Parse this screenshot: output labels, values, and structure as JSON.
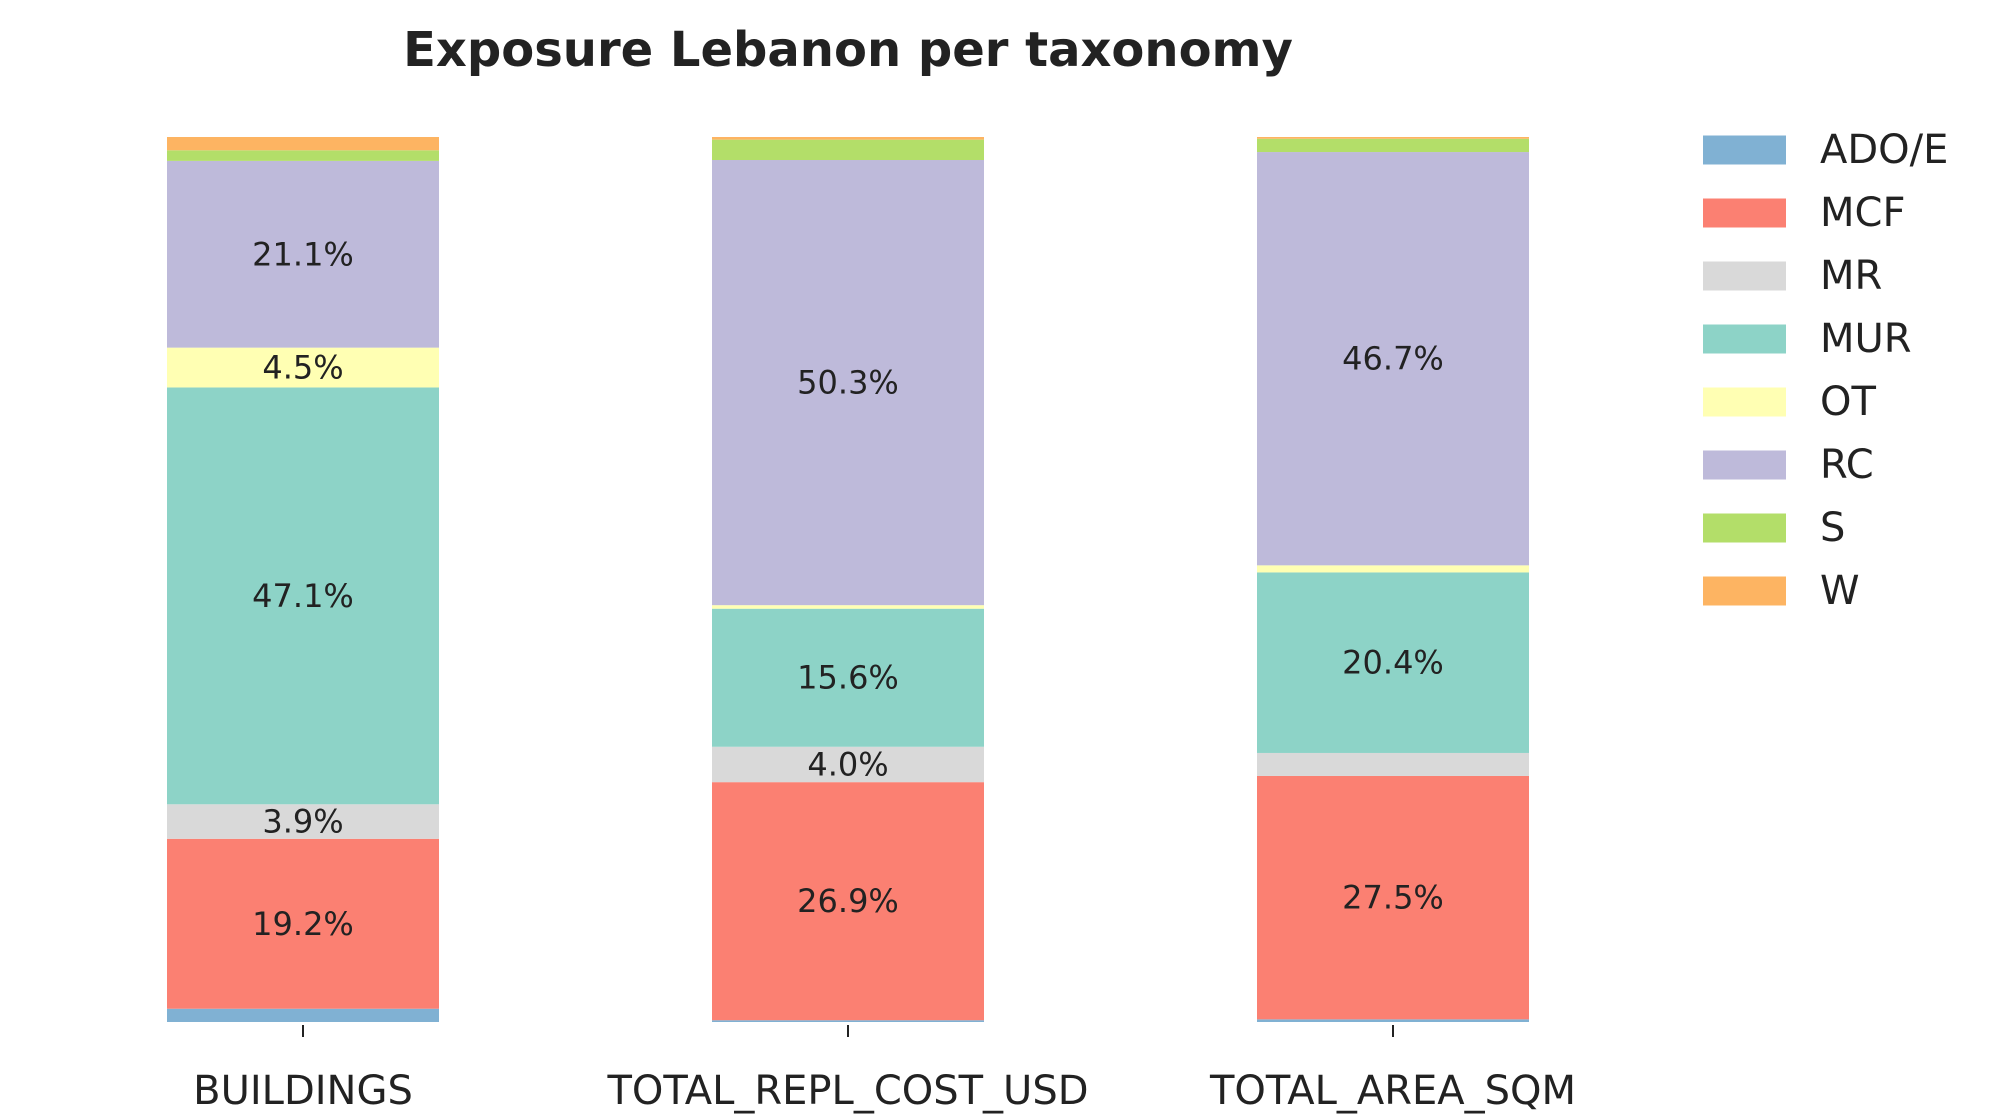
{
  "chart_data": {
    "type": "bar",
    "stacked": true,
    "normalized": true,
    "title": "Exposure Lebanon per taxonomy",
    "xlabel": "",
    "ylabel": "",
    "ylim": [
      0,
      1
    ],
    "grid": false,
    "legend_placement": "right",
    "categories": [
      "BUILDINGS",
      "TOTAL_REPL_COST_USD",
      "TOTAL_AREA_SQM"
    ],
    "series": [
      {
        "name": "ADO/E",
        "color": "#80b1d3",
        "values": [
          1.5,
          0.2,
          0.3
        ]
      },
      {
        "name": "MCF",
        "color": "#fb8072",
        "values": [
          19.2,
          26.9,
          27.5
        ]
      },
      {
        "name": "MR",
        "color": "#d9d9d9",
        "values": [
          3.9,
          4.0,
          2.6
        ]
      },
      {
        "name": "MUR",
        "color": "#8dd3c7",
        "values": [
          47.1,
          15.6,
          20.4
        ]
      },
      {
        "name": "OT",
        "color": "#ffffb3",
        "values": [
          4.5,
          0.4,
          0.8
        ]
      },
      {
        "name": "RC",
        "color": "#bebada",
        "values": [
          21.1,
          50.3,
          46.7
        ]
      },
      {
        "name": "S",
        "color": "#b3de69",
        "values": [
          1.2,
          2.3,
          1.5
        ]
      },
      {
        "name": "W",
        "color": "#fdb462",
        "values": [
          1.5,
          0.3,
          0.2
        ]
      }
    ],
    "data_labels": [
      {
        "category": "BUILDINGS",
        "series": "RC",
        "text": "21.1%"
      },
      {
        "category": "BUILDINGS",
        "series": "OT",
        "text": "4.5%"
      },
      {
        "category": "BUILDINGS",
        "series": "MUR",
        "text": "47.1%"
      },
      {
        "category": "BUILDINGS",
        "series": "MR",
        "text": "3.9%"
      },
      {
        "category": "BUILDINGS",
        "series": "MCF",
        "text": "19.2%"
      },
      {
        "category": "TOTAL_REPL_COST_USD",
        "series": "RC",
        "text": "50.3%"
      },
      {
        "category": "TOTAL_REPL_COST_USD",
        "series": "MUR",
        "text": "15.6%"
      },
      {
        "category": "TOTAL_REPL_COST_USD",
        "series": "MR",
        "text": "4.0%"
      },
      {
        "category": "TOTAL_REPL_COST_USD",
        "series": "MCF",
        "text": "26.9%"
      },
      {
        "category": "TOTAL_AREA_SQM",
        "series": "RC",
        "text": "46.7%"
      },
      {
        "category": "TOTAL_AREA_SQM",
        "series": "MUR",
        "text": "20.4%"
      },
      {
        "category": "TOTAL_AREA_SQM",
        "series": "MCF",
        "text": "27.5%"
      }
    ]
  }
}
